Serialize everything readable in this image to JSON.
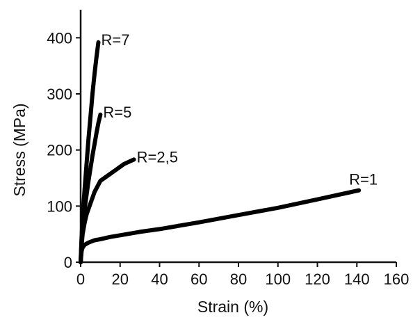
{
  "chart_data": {
    "type": "line",
    "title": "",
    "xlabel": "Strain (%)",
    "ylabel": "Stress (MPa)",
    "xlim": [
      0,
      160
    ],
    "ylim": [
      0,
      450
    ],
    "xticks": [
      "0",
      "20",
      "40",
      "60",
      "80",
      "100",
      "120",
      "140",
      "160"
    ],
    "yticks": [
      "0",
      "100",
      "200",
      "300",
      "400"
    ],
    "grid": false,
    "legend": "none",
    "line_color": "#000000",
    "series": [
      {
        "name": "R=1",
        "x": [
          0,
          0.5,
          1,
          2,
          4,
          7,
          10,
          15,
          20,
          30,
          40,
          60,
          80,
          100,
          120,
          141
        ],
        "y": [
          0,
          20,
          26,
          31,
          35,
          39,
          41,
          45,
          48,
          54,
          59,
          71,
          84,
          97,
          112,
          128
        ]
      },
      {
        "name": "R=2,5",
        "x": [
          0,
          0.5,
          1,
          2,
          3,
          5,
          7,
          10,
          14,
          18,
          22,
          27
        ],
        "y": [
          0,
          30,
          50,
          70,
          85,
          105,
          125,
          145,
          155,
          165,
          175,
          183
        ]
      },
      {
        "name": "R=5",
        "x": [
          0,
          0.5,
          1,
          2,
          3,
          4,
          5,
          6,
          7,
          8,
          9,
          10
        ],
        "y": [
          0,
          40,
          65,
          95,
          120,
          145,
          168,
          190,
          210,
          230,
          248,
          263
        ]
      },
      {
        "name": "R=7",
        "x": [
          0,
          0.5,
          1,
          2,
          3,
          4,
          5,
          6,
          7,
          8,
          9
        ],
        "y": [
          0,
          45,
          80,
          130,
          175,
          220,
          260,
          300,
          335,
          365,
          392
        ]
      }
    ]
  }
}
